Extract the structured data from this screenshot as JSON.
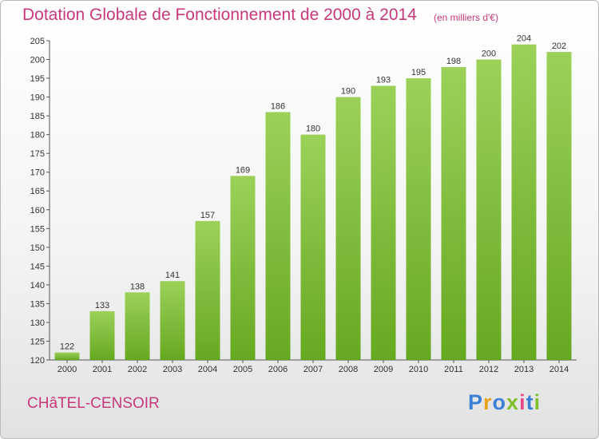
{
  "title": "Dotation Globale de Fonctionnement de 2000 à 2014",
  "subtitle": "(en milliers d'€)",
  "commune": "CHâTEL-CENSOIR",
  "logo": {
    "letters": [
      "P",
      "r",
      "o",
      "x",
      "i",
      "t",
      "i"
    ],
    "colors": [
      "#3b7fd6",
      "#e8a21a",
      "#3b7fd6",
      "#7fbf2a",
      "#e84a8a",
      "#3b7fd6",
      "#7fbf2a"
    ]
  },
  "colors": {
    "bar_top": "#9cd159",
    "bar_bottom": "#66a821",
    "text": "#c8387c",
    "axis": "#555555"
  },
  "chart_data": {
    "type": "bar",
    "categories": [
      "2000",
      "2001",
      "2002",
      "2003",
      "2004",
      "2005",
      "2006",
      "2007",
      "2008",
      "2009",
      "2010",
      "2011",
      "2012",
      "2013",
      "2014"
    ],
    "values": [
      122,
      133,
      138,
      141,
      157,
      169,
      186,
      180,
      190,
      193,
      195,
      198,
      200,
      204,
      202
    ],
    "ylim": [
      120,
      205
    ],
    "yticks": [
      120,
      125,
      130,
      135,
      140,
      145,
      150,
      155,
      160,
      165,
      170,
      175,
      180,
      185,
      190,
      195,
      200,
      205
    ],
    "grid": false
  }
}
